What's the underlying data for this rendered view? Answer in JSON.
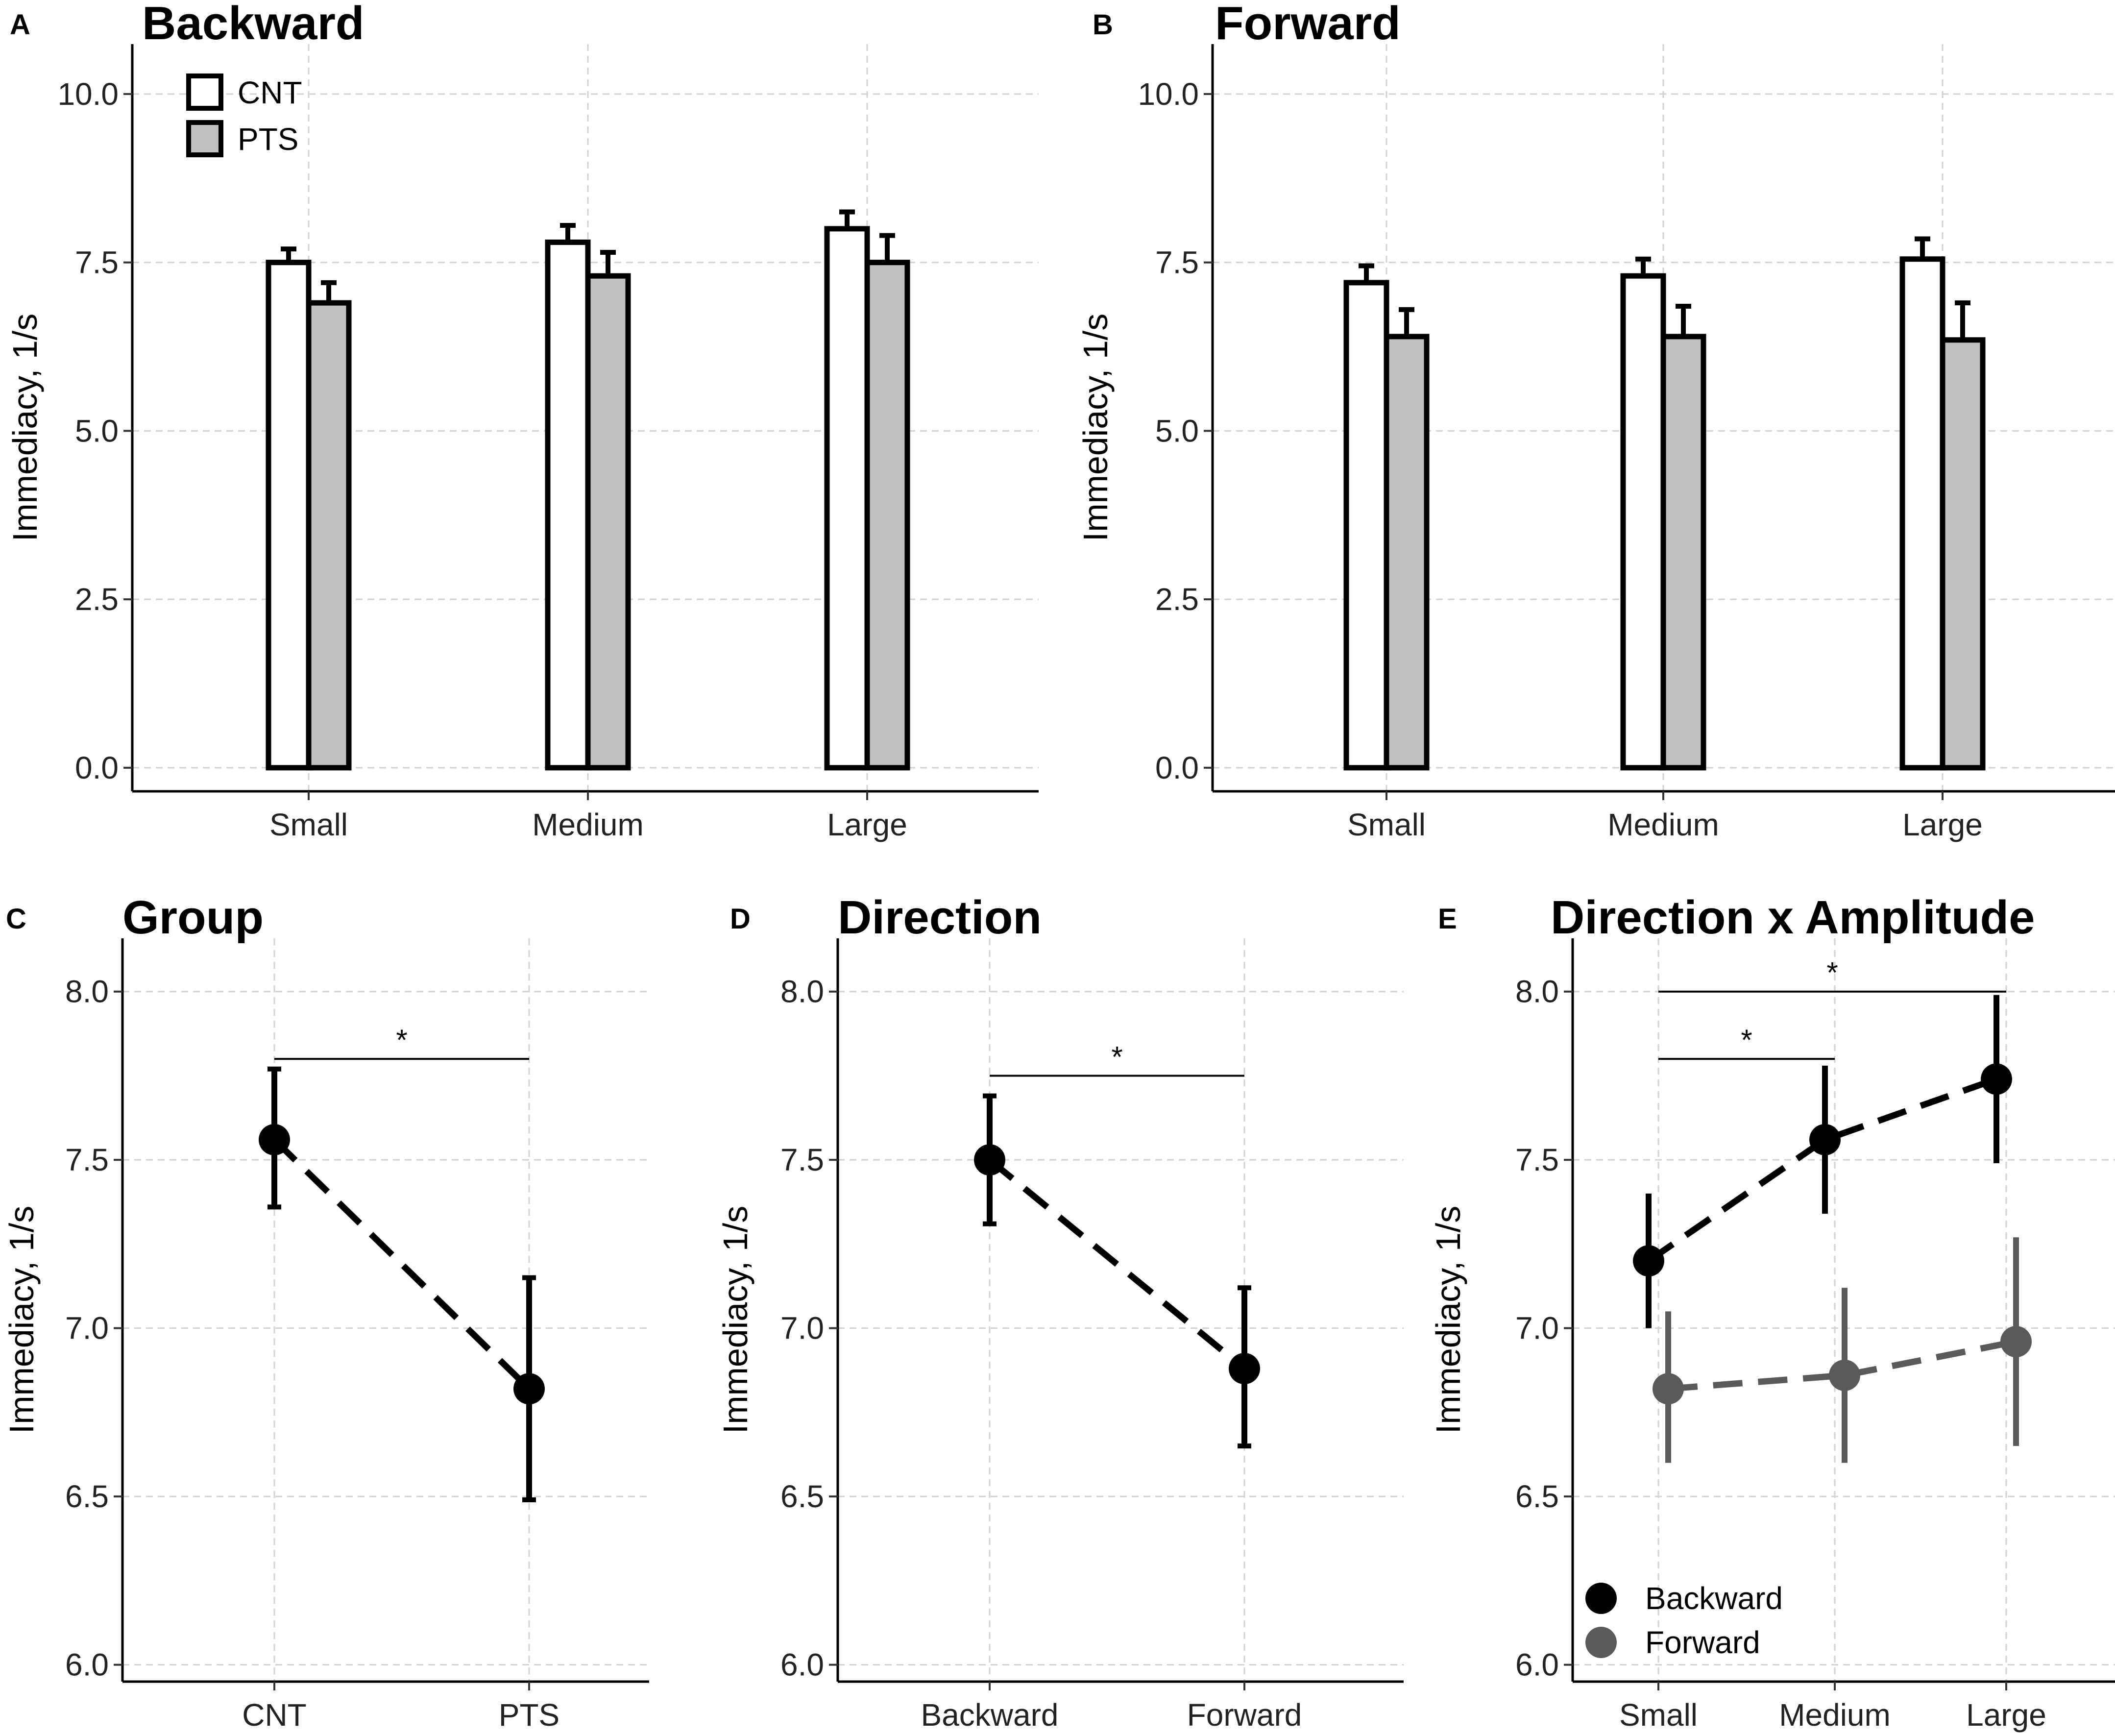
{
  "chart_data": [
    {
      "id": "A",
      "panel_label": "A",
      "type": "bar",
      "title": "Backward",
      "xlabel": "",
      "ylabel": "Immediacy, 1/s",
      "categories": [
        "Small",
        "Medium",
        "Large"
      ],
      "ylim": [
        -0.35,
        10.45
      ],
      "yticks": [
        0,
        2.5,
        5,
        7.5,
        10
      ],
      "ytick_labels": [
        "0.0",
        "2.5",
        "5.0",
        "7.5",
        "10.0"
      ],
      "grid": true,
      "legend_position": "top-left",
      "series": [
        {
          "name": "CNT",
          "fill": "#ffffff",
          "values": [
            7.5,
            7.8,
            8.0
          ],
          "err": [
            0.2,
            0.25,
            0.25
          ]
        },
        {
          "name": "PTS",
          "fill": "#c0c0c0",
          "values": [
            6.9,
            7.3,
            7.5
          ],
          "err": [
            0.3,
            0.35,
            0.4
          ]
        }
      ],
      "legend": [
        "CNT",
        "PTS"
      ]
    },
    {
      "id": "B",
      "panel_label": "B",
      "type": "bar",
      "title": "Forward",
      "xlabel": "",
      "ylabel": "Immediacy, 1/s",
      "categories": [
        "Small",
        "Medium",
        "Large"
      ],
      "ylim": [
        -0.35,
        10.45
      ],
      "yticks": [
        0,
        2.5,
        5,
        7.5,
        10
      ],
      "ytick_labels": [
        "0.0",
        "2.5",
        "5.0",
        "7.5",
        "10.0"
      ],
      "grid": true,
      "series": [
        {
          "name": "CNT",
          "fill": "#ffffff",
          "values": [
            7.2,
            7.3,
            7.55
          ],
          "err": [
            0.25,
            0.25,
            0.3
          ]
        },
        {
          "name": "PTS",
          "fill": "#c0c0c0",
          "values": [
            6.4,
            6.4,
            6.35
          ],
          "err": [
            0.4,
            0.45,
            0.55
          ]
        }
      ]
    },
    {
      "id": "C",
      "panel_label": "C",
      "type": "line",
      "title": "Group",
      "xlabel": "",
      "ylabel": "Immediacy, 1/s",
      "categories": [
        "CNT",
        "PTS"
      ],
      "ylim": [
        5.95,
        8.1
      ],
      "yticks": [
        6.0,
        6.5,
        7.0,
        7.5,
        8.0
      ],
      "ytick_labels": [
        "6.0",
        "6.5",
        "7.0",
        "7.5",
        "8.0"
      ],
      "grid": true,
      "series": [
        {
          "name": "Group",
          "color": "#000000",
          "values": [
            7.56,
            6.82
          ],
          "lower": [
            7.36,
            6.49
          ],
          "upper": [
            7.77,
            7.15
          ]
        }
      ],
      "significance": [
        {
          "from": 0,
          "to": 1,
          "y": 7.8,
          "label": "*"
        }
      ]
    },
    {
      "id": "D",
      "panel_label": "D",
      "type": "line",
      "title": "Direction",
      "xlabel": "",
      "ylabel": "Immediacy, 1/s",
      "categories": [
        "Backward",
        "Forward"
      ],
      "ylim": [
        5.95,
        8.1
      ],
      "yticks": [
        6.0,
        6.5,
        7.0,
        7.5,
        8.0
      ],
      "ytick_labels": [
        "6.0",
        "6.5",
        "7.0",
        "7.5",
        "8.0"
      ],
      "grid": true,
      "series": [
        {
          "name": "Direction",
          "color": "#000000",
          "values": [
            7.5,
            6.88
          ],
          "lower": [
            7.31,
            6.65
          ],
          "upper": [
            7.69,
            7.12
          ]
        }
      ],
      "significance": [
        {
          "from": 0,
          "to": 1,
          "y": 7.75,
          "label": "*"
        }
      ]
    },
    {
      "id": "E",
      "panel_label": "E",
      "type": "line",
      "title": "Direction x Amplitude",
      "xlabel": "",
      "ylabel": "Immediacy, 1/s",
      "categories": [
        "Small",
        "Medium",
        "Large"
      ],
      "ylim": [
        5.95,
        8.1
      ],
      "yticks": [
        6.0,
        6.5,
        7.0,
        7.5,
        8.0
      ],
      "ytick_labels": [
        "6.0",
        "6.5",
        "7.0",
        "7.5",
        "8.0"
      ],
      "grid": true,
      "legend_position": "bottom-left",
      "series": [
        {
          "name": "Backward",
          "color": "#000000",
          "values": [
            7.2,
            7.56,
            7.74
          ],
          "lower": [
            7.0,
            7.34,
            7.49
          ],
          "upper": [
            7.4,
            7.78,
            7.99
          ]
        },
        {
          "name": "Forward",
          "color": "#5a5a5a",
          "values": [
            6.82,
            6.86,
            6.96
          ],
          "lower": [
            6.6,
            6.6,
            6.65
          ],
          "upper": [
            7.05,
            7.12,
            7.27
          ]
        }
      ],
      "legend": [
        "Backward",
        "Forward"
      ],
      "significance": [
        {
          "from": 0,
          "to": 1,
          "y": 7.8,
          "label": "*"
        },
        {
          "from": 0,
          "to": 2,
          "y": 8.0,
          "label": "*"
        }
      ]
    }
  ]
}
